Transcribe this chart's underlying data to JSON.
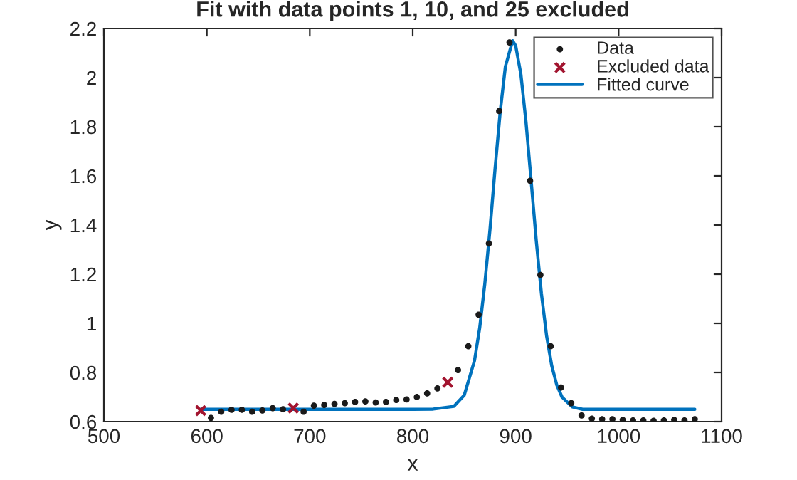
{
  "chart_data": {
    "type": "scatter",
    "title": "Fit with data points 1, 10, and 25 excluded",
    "xlabel": "x",
    "ylabel": "y",
    "xlim": [
      500,
      1100
    ],
    "xticks": [
      500,
      600,
      700,
      800,
      900,
      1000,
      1100
    ],
    "ylim": [
      0.6,
      2.2
    ],
    "yticks": [
      0.6,
      0.8,
      1,
      1.2,
      1.4,
      1.6,
      1.8,
      2,
      2.2
    ],
    "grid": false,
    "legend": "top right",
    "series": [
      {
        "name": "Data",
        "marker": "circle",
        "color": "#1a1a1a",
        "x": [
          604,
          614,
          624,
          634,
          644,
          654,
          664,
          674,
          694,
          704,
          714,
          724,
          734,
          744,
          754,
          764,
          774,
          784,
          794,
          804,
          814,
          824,
          844,
          854,
          864,
          874,
          884,
          894,
          904,
          914,
          924,
          934,
          944,
          954,
          964,
          974,
          984,
          994,
          1004,
          1014,
          1024,
          1034,
          1044,
          1054,
          1064,
          1074
        ],
        "values": [
          0.615,
          0.64,
          0.648,
          0.648,
          0.64,
          0.645,
          0.655,
          0.65,
          0.64,
          0.665,
          0.668,
          0.672,
          0.675,
          0.68,
          0.682,
          0.678,
          0.68,
          0.688,
          0.69,
          0.7,
          0.715,
          0.735,
          0.81,
          0.907,
          1.035,
          1.325,
          1.864,
          2.143,
          null,
          1.58,
          1.197,
          0.907,
          0.739,
          0.675,
          0.625,
          0.612,
          0.61,
          0.61,
          0.607,
          0.605,
          0.605,
          0.603,
          0.605,
          0.607,
          0.605,
          0.61
        ]
      },
      {
        "name": "Excluded data",
        "marker": "cross",
        "color": "#a2142f",
        "x": [
          594,
          684,
          834
        ],
        "values": [
          0.645,
          0.655,
          0.76
        ]
      },
      {
        "name": "Fitted curve",
        "type": "line",
        "marker": "none",
        "line_style": "solid",
        "color": "#0072bd",
        "x": [
          594,
          700,
          800,
          820,
          840,
          850,
          860,
          865,
          870,
          875,
          880,
          885,
          890,
          897,
          900,
          905,
          910,
          915,
          920,
          925,
          930,
          935,
          940,
          945,
          955,
          965,
          1000,
          1074
        ],
        "values": [
          0.65,
          0.65,
          0.65,
          0.651,
          0.662,
          0.707,
          0.848,
          0.98,
          1.16,
          1.38,
          1.63,
          1.862,
          2.045,
          2.15,
          2.13,
          2.015,
          1.82,
          1.58,
          1.336,
          1.121,
          0.95,
          0.828,
          0.748,
          0.7,
          0.66,
          0.65,
          0.65,
          0.65
        ]
      }
    ]
  }
}
